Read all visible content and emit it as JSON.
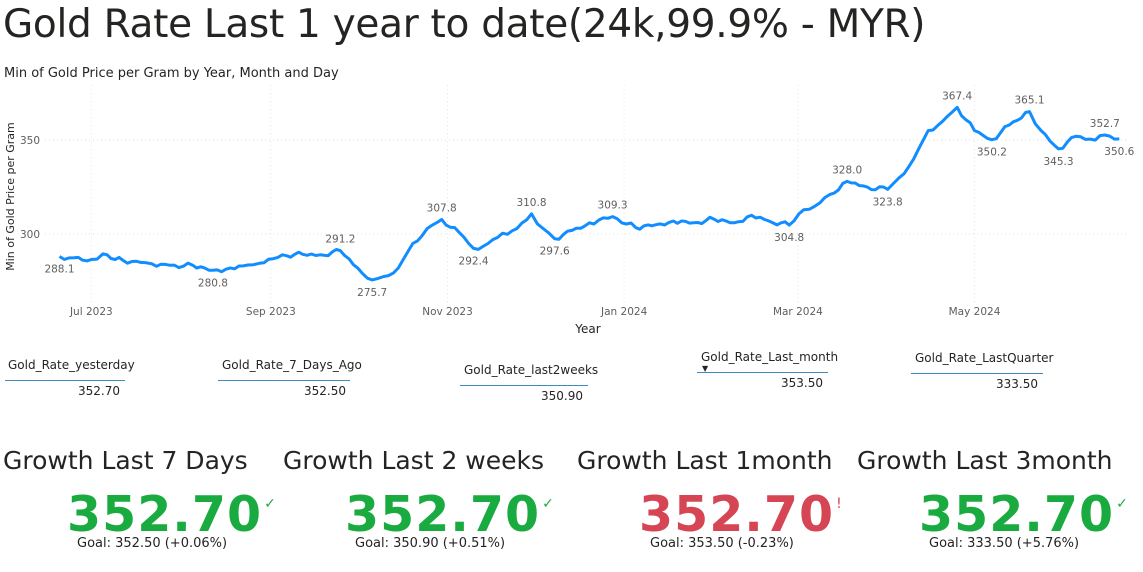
{
  "title": "Gold Rate Last 1 year to date(24k,99.9% - MYR)",
  "subtitle": "Min of Gold Price per Gram by Year, Month and Day",
  "chart_data": {
    "type": "line",
    "xlabel": "Year",
    "ylabel": "Min of Gold Price per Gram",
    "x_ticks": [
      "Jul 2023",
      "Sep 2023",
      "Nov 2023",
      "Jan 2024",
      "Mar 2024",
      "May 2024"
    ],
    "y_ticks": [
      300,
      350
    ],
    "ylim": [
      265,
      375
    ],
    "grid": true,
    "color": "#118dff",
    "series": [
      {
        "x": [
          "2023-06-20",
          "2023-06-25",
          "2023-07-01",
          "2023-07-05",
          "2023-07-12",
          "2023-07-18",
          "2023-07-22",
          "2023-07-28",
          "2023-08-05",
          "2023-08-12",
          "2023-08-18",
          "2023-08-24",
          "2023-08-28",
          "2023-09-05",
          "2023-09-12",
          "2023-09-18",
          "2023-09-25",
          "2023-10-01",
          "2023-10-06",
          "2023-10-10",
          "2023-10-15",
          "2023-10-20",
          "2023-10-25",
          "2023-10-30",
          "2023-11-05",
          "2023-11-10",
          "2023-11-15",
          "2023-11-20",
          "2023-11-25",
          "2023-11-30",
          "2023-12-04",
          "2023-12-08",
          "2023-12-14",
          "2023-12-20",
          "2023-12-28",
          "2024-01-05",
          "2024-01-12",
          "2024-01-18",
          "2024-01-25",
          "2024-02-01",
          "2024-02-08",
          "2024-02-14",
          "2024-02-20",
          "2024-02-27",
          "2024-03-03",
          "2024-03-07",
          "2024-03-12",
          "2024-03-18",
          "2024-03-25",
          "2024-04-01",
          "2024-04-05",
          "2024-04-10",
          "2024-04-15",
          "2024-04-20",
          "2024-04-25",
          "2024-05-01",
          "2024-05-07",
          "2024-05-13",
          "2024-05-20",
          "2024-05-24",
          "2024-05-30",
          "2024-06-05",
          "2024-06-10",
          "2024-06-15",
          "2024-06-20"
        ],
        "y": [
          288.1,
          287.5,
          286.5,
          289.5,
          286,
          285,
          284.2,
          283.5,
          283.5,
          280.8,
          282,
          283.6,
          284.5,
          289.0,
          289.3,
          289.0,
          291.2,
          282,
          275.7,
          277.5,
          282,
          295,
          303,
          307.8,
          301,
          292.4,
          295,
          300.5,
          303,
          310.8,
          303,
          297.6,
          302,
          306.0,
          309.3,
          303.5,
          305,
          307,
          306,
          308,
          306,
          310,
          307,
          304.8,
          313,
          315,
          321,
          328.0,
          325,
          323.8,
          330,
          340,
          355,
          360,
          367.4,
          355,
          350.2,
          358,
          365.1,
          355,
          345.3,
          352,
          350.5,
          352.7,
          350.6
        ],
        "labels": [
          {
            "x": "2023-06-20",
            "y": 288.1,
            "text": "288.1",
            "pos": "below"
          },
          {
            "x": "2023-08-12",
            "y": 280.8,
            "text": "280.8",
            "pos": "below"
          },
          {
            "x": "2023-09-25",
            "y": 291.2,
            "text": "291.2",
            "pos": "above"
          },
          {
            "x": "2023-10-06",
            "y": 275.7,
            "text": "275.7",
            "pos": "below"
          },
          {
            "x": "2023-10-30",
            "y": 307.8,
            "text": "307.8",
            "pos": "above"
          },
          {
            "x": "2023-11-10",
            "y": 292.4,
            "text": "292.4",
            "pos": "below"
          },
          {
            "x": "2023-11-30",
            "y": 310.8,
            "text": "310.8",
            "pos": "above"
          },
          {
            "x": "2023-12-08",
            "y": 297.6,
            "text": "297.6",
            "pos": "below"
          },
          {
            "x": "2023-12-28",
            "y": 309.3,
            "text": "309.3",
            "pos": "above"
          },
          {
            "x": "2024-02-27",
            "y": 304.8,
            "text": "304.8",
            "pos": "below"
          },
          {
            "x": "2024-03-18",
            "y": 328.0,
            "text": "328.0",
            "pos": "above"
          },
          {
            "x": "2024-04-01",
            "y": 323.8,
            "text": "323.8",
            "pos": "below"
          },
          {
            "x": "2024-04-25",
            "y": 367.4,
            "text": "367.4",
            "pos": "above"
          },
          {
            "x": "2024-05-07",
            "y": 350.2,
            "text": "350.2",
            "pos": "below"
          },
          {
            "x": "2024-05-20",
            "y": 365.1,
            "text": "365.1",
            "pos": "above"
          },
          {
            "x": "2024-05-30",
            "y": 345.3,
            "text": "345.3",
            "pos": "below"
          },
          {
            "x": "2024-06-15",
            "y": 352.7,
            "text": "352.7",
            "pos": "above"
          },
          {
            "x": "2024-06-20",
            "y": 350.6,
            "text": "350.6",
            "pos": "below"
          }
        ]
      }
    ]
  },
  "cards": [
    {
      "label": "Gold_Rate_yesterday",
      "value": "352.70"
    },
    {
      "label": "Gold_Rate_7_Days_Ago",
      "value": "352.50"
    },
    {
      "label": "Gold_Rate_last2weeks",
      "value": "350.90"
    },
    {
      "label": "Gold_Rate_Last_month",
      "value": "353.50"
    },
    {
      "label": "Gold_Rate_LastQuarter",
      "value": "333.50"
    }
  ],
  "kpis": [
    {
      "title": "Growth Last 7 Days",
      "value": "352.70",
      "status": "✓",
      "color": "#1aab40",
      "goal": "Goal: 352.50 (+0.06%)"
    },
    {
      "title": "Growth Last 2 weeks",
      "value": "352.70",
      "status": "✓",
      "color": "#1aab40",
      "goal": "Goal: 350.90 (+0.51%)"
    },
    {
      "title": "Growth Last 1month",
      "value": "352.70",
      "status": "!",
      "color": "#d64554",
      "goal": "Goal: 353.50 (-0.23%)"
    },
    {
      "title": "Growth Last 3month",
      "value": "352.70",
      "status": "✓",
      "color": "#1aab40",
      "goal": "Goal: 333.50 (+5.76%)"
    }
  ]
}
